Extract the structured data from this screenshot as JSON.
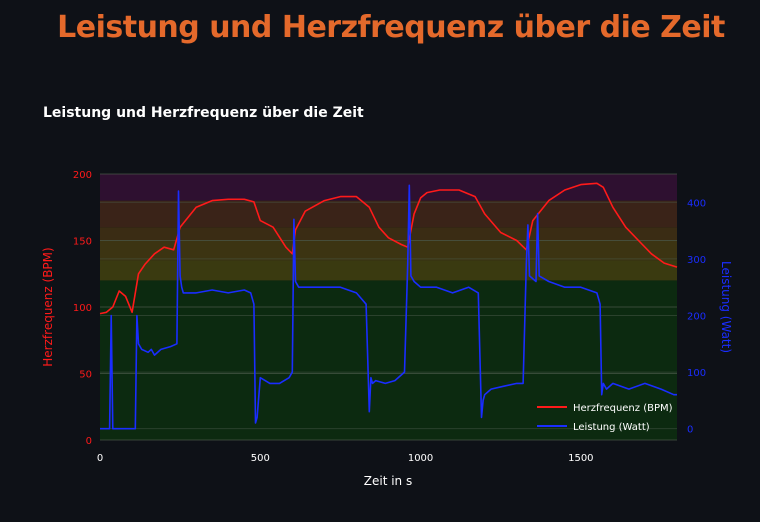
{
  "page": {
    "title": "Leistung und Herzfrequenz über die Zeit",
    "subheader": "Leistung und Herzfrequenz über die Zeit"
  },
  "colors": {
    "background": "#0e1117",
    "title": "#e4692b",
    "heart_rate": "#ff1a1a",
    "power": "#1a2dff",
    "gridline": "#4a5a4a"
  },
  "chart_data": {
    "type": "line",
    "title": "",
    "xlabel": "Zeit in s",
    "ylabel_left": "Herzfrequenz (BPM)",
    "ylabel_right": "Leistung (Watt)",
    "xlim": [
      0,
      1800
    ],
    "ylim_left": [
      0,
      200
    ],
    "ylim_right": [
      -20,
      450
    ],
    "x_ticks": [
      0,
      500,
      1000,
      1500
    ],
    "y_left_ticks": [
      0,
      50,
      100,
      150,
      200
    ],
    "y_right_ticks": [
      0,
      100,
      200,
      300,
      400
    ],
    "legend_position": "bottom-right",
    "zones": [
      {
        "from": 0,
        "to": 120,
        "color": "#0c2a10"
      },
      {
        "from": 120,
        "to": 135,
        "color": "#3a3a10"
      },
      {
        "from": 135,
        "to": 150,
        "color": "#3c3412"
      },
      {
        "from": 150,
        "to": 160,
        "color": "#3a2c14"
      },
      {
        "from": 160,
        "to": 180,
        "color": "#3a2318"
      },
      {
        "from": 180,
        "to": 200,
        "color": "#2e1030"
      }
    ],
    "series": [
      {
        "name": "Herzfrequenz (BPM)",
        "axis": "left",
        "color": "#ff1a1a",
        "x": [
          0,
          20,
          40,
          60,
          80,
          100,
          120,
          140,
          170,
          200,
          230,
          250,
          300,
          350,
          400,
          450,
          480,
          500,
          540,
          580,
          600,
          610,
          640,
          700,
          750,
          800,
          840,
          870,
          900,
          940,
          960,
          980,
          1000,
          1020,
          1060,
          1120,
          1170,
          1200,
          1250,
          1300,
          1330,
          1350,
          1400,
          1450,
          1500,
          1550,
          1570,
          1600,
          1640,
          1680,
          1720,
          1760,
          1800
        ],
        "y": [
          95,
          96,
          100,
          112,
          108,
          96,
          125,
          132,
          140,
          145,
          143,
          160,
          175,
          180,
          181,
          181,
          179,
          165,
          160,
          145,
          140,
          158,
          172,
          180,
          183,
          183,
          175,
          160,
          152,
          147,
          145,
          170,
          182,
          186,
          188,
          188,
          183,
          170,
          156,
          150,
          143,
          165,
          180,
          188,
          192,
          193,
          190,
          175,
          160,
          150,
          140,
          133,
          130
        ]
      },
      {
        "name": "Leistung (Watt)",
        "axis": "right",
        "color": "#1a2dff",
        "x": [
          0,
          30,
          35,
          40,
          50,
          110,
          115,
          120,
          130,
          150,
          160,
          170,
          190,
          220,
          240,
          245,
          250,
          255,
          260,
          280,
          300,
          350,
          400,
          450,
          470,
          480,
          485,
          490,
          500,
          530,
          560,
          590,
          600,
          605,
          610,
          620,
          650,
          700,
          750,
          800,
          830,
          840,
          845,
          850,
          860,
          890,
          920,
          950,
          960,
          965,
          970,
          980,
          1000,
          1050,
          1100,
          1150,
          1180,
          1190,
          1195,
          1200,
          1220,
          1260,
          1300,
          1320,
          1330,
          1335,
          1340,
          1360,
          1365,
          1370,
          1400,
          1450,
          1500,
          1550,
          1560,
          1565,
          1570,
          1580,
          1600,
          1650,
          1700,
          1750,
          1790,
          1800
        ],
        "y": [
          0,
          0,
          200,
          0,
          0,
          0,
          200,
          150,
          140,
          135,
          140,
          130,
          140,
          145,
          150,
          420,
          270,
          250,
          240,
          240,
          240,
          245,
          240,
          245,
          240,
          220,
          10,
          20,
          90,
          80,
          80,
          90,
          100,
          370,
          260,
          250,
          250,
          250,
          250,
          240,
          220,
          30,
          90,
          80,
          85,
          80,
          85,
          100,
          290,
          430,
          270,
          260,
          250,
          250,
          240,
          250,
          240,
          20,
          50,
          60,
          70,
          75,
          80,
          80,
          290,
          360,
          270,
          260,
          380,
          270,
          260,
          250,
          250,
          240,
          220,
          60,
          80,
          70,
          80,
          70,
          80,
          70,
          60,
          60
        ]
      }
    ]
  }
}
